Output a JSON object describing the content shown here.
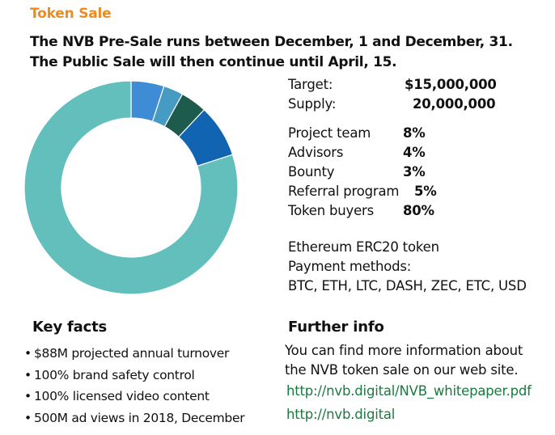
{
  "section": {
    "title": "Token Sale",
    "intro_line1": "The NVB Pre-Sale runs between December, 1 and December, 31.",
    "intro_line2": "The Public Sale will then continue until April, 15."
  },
  "colors": {
    "accent": "#ef8a1c",
    "link": "#1a7a3f",
    "text": "#111111"
  },
  "summary": {
    "target_label": "Target:",
    "target_value": "$15,000,000",
    "supply_label": "Supply:",
    "supply_value": "20,000,000"
  },
  "allocation": [
    {
      "label": "Project team",
      "value": "8%"
    },
    {
      "label": "Advisors",
      "value": "4%"
    },
    {
      "label": "Bounty",
      "value": "3%"
    },
    {
      "label": "Referral program",
      "value": "5%"
    },
    {
      "label": "Token buyers",
      "value": "80%"
    }
  ],
  "chart_data": {
    "type": "pie",
    "categories": [
      "Project team",
      "Advisors",
      "Bounty",
      "Referral program",
      "Token buyers"
    ],
    "values": [
      8,
      4,
      3,
      5,
      80
    ],
    "order_clockwise_from_top": [
      "Referral program",
      "Bounty",
      "Advisors",
      "Project team",
      "Token buyers"
    ],
    "colors": {
      "Referral program": "#3e8bd6",
      "Bounty": "#459bc2",
      "Advisors": "#1d5b4c",
      "Project team": "#1164b2",
      "Token buyers": "#63bfbc"
    },
    "style": "donut",
    "start_angle_deg": 0,
    "title": "",
    "legend": "none"
  },
  "token": {
    "line1": "Ethereum ERC20 token",
    "line2": "Payment methods:",
    "line3": "BTC, ETH, LTC, DASH, ZEC, ETC, USD"
  },
  "key_facts": {
    "title": "Key facts",
    "bullet": "•",
    "items": [
      "$88M projected annual turnover",
      "100% brand safety control",
      "100% licensed video content",
      "500M ad views in 2018, December"
    ]
  },
  "further_info": {
    "title": "Further info",
    "text_line1": "You can find more information about",
    "text_line2": "the NVB token sale on our web site.",
    "link1": "http://nvb.digital/NVB_whitepaper.pdf",
    "link2": "http://nvb.digital"
  }
}
